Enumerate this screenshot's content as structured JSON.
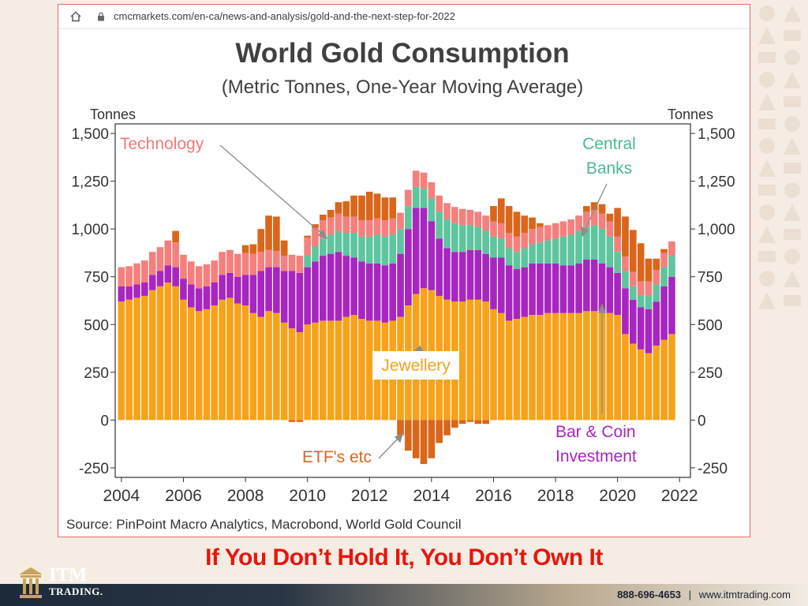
{
  "browser": {
    "url": "cmcmarkets.com/en-ca/news-and-analysis/gold-and-the-next-step-for-2022"
  },
  "chart_data": {
    "type": "bar",
    "stacked": true,
    "title": "World Gold Consumption",
    "subtitle": "(Metric Tonnes, One-Year Moving Average)",
    "ylabel_left": "Tonnes",
    "ylabel_right": "Tonnes",
    "ylim": [
      -300,
      1550
    ],
    "yticks": [
      -250,
      0,
      250,
      500,
      750,
      1000,
      1250,
      1500
    ],
    "ytick_labels": [
      "-250",
      "0",
      "250",
      "500",
      "750",
      "1,000",
      "1,250",
      "1,500"
    ],
    "xlim": [
      2003.8,
      2022.35
    ],
    "xticks": [
      2004,
      2006,
      2008,
      2010,
      2012,
      2014,
      2016,
      2018,
      2020,
      2022
    ],
    "grid": false,
    "source": "Source: PinPoint Macro Analytics, Macrobond, World Gold Council",
    "annotations": {
      "technology": "Technology",
      "central_1": "Central",
      "central_2": "Banks",
      "jewellery": "Jewellery",
      "etf": "ETF's etc",
      "barcoin_1": "Bar & Coin",
      "barcoin_2": "Investment"
    },
    "x": [
      2004.0,
      2004.25,
      2004.5,
      2004.75,
      2005.0,
      2005.25,
      2005.5,
      2005.75,
      2006.0,
      2006.25,
      2006.5,
      2006.75,
      2007.0,
      2007.25,
      2007.5,
      2007.75,
      2008.0,
      2008.25,
      2008.5,
      2008.75,
      2009.0,
      2009.25,
      2009.5,
      2009.75,
      2010.0,
      2010.25,
      2010.5,
      2010.75,
      2011.0,
      2011.25,
      2011.5,
      2011.75,
      2012.0,
      2012.25,
      2012.5,
      2012.75,
      2013.0,
      2013.25,
      2013.5,
      2013.75,
      2014.0,
      2014.25,
      2014.5,
      2014.75,
      2015.0,
      2015.25,
      2015.5,
      2015.75,
      2016.0,
      2016.25,
      2016.5,
      2016.75,
      2017.0,
      2017.25,
      2017.5,
      2017.75,
      2018.0,
      2018.25,
      2018.5,
      2018.75,
      2019.0,
      2019.25,
      2019.5,
      2019.75,
      2020.0,
      2020.25,
      2020.5,
      2020.75,
      2021.0,
      2021.25,
      2021.5,
      2021.75
    ],
    "series": [
      {
        "name": "Jewellery",
        "color": "#f7a21b",
        "values": [
          620,
          630,
          640,
          650,
          680,
          700,
          720,
          700,
          630,
          590,
          570,
          580,
          600,
          630,
          640,
          610,
          600,
          560,
          540,
          570,
          560,
          510,
          480,
          460,
          500,
          510,
          520,
          520,
          520,
          540,
          550,
          530,
          520,
          520,
          510,
          520,
          540,
          600,
          660,
          690,
          680,
          650,
          630,
          620,
          620,
          630,
          630,
          620,
          580,
          560,
          520,
          530,
          540,
          550,
          550,
          560,
          560,
          560,
          560,
          560,
          570,
          570,
          560,
          560,
          550,
          450,
          400,
          370,
          350,
          390,
          420,
          450
        ]
      },
      {
        "name": "Bar & Coin Investment",
        "color": "#a726bf",
        "values": [
          80,
          70,
          70,
          70,
          80,
          80,
          90,
          100,
          110,
          120,
          120,
          120,
          120,
          130,
          130,
          140,
          160,
          200,
          240,
          230,
          240,
          270,
          300,
          310,
          300,
          320,
          340,
          350,
          360,
          320,
          300,
          300,
          300,
          300,
          300,
          300,
          330,
          400,
          450,
          420,
          360,
          300,
          270,
          260,
          260,
          260,
          260,
          250,
          270,
          290,
          290,
          260,
          260,
          270,
          270,
          260,
          260,
          250,
          250,
          260,
          270,
          270,
          260,
          240,
          220,
          240,
          230,
          220,
          230,
          230,
          280,
          300
        ]
      },
      {
        "name": "Central Banks",
        "color": "#5ec59e",
        "values": [
          0,
          0,
          0,
          0,
          0,
          0,
          0,
          0,
          0,
          0,
          0,
          0,
          0,
          0,
          0,
          0,
          0,
          0,
          0,
          0,
          0,
          0,
          0,
          0,
          60,
          80,
          90,
          100,
          110,
          120,
          130,
          130,
          140,
          150,
          150,
          150,
          130,
          120,
          110,
          100,
          120,
          140,
          150,
          150,
          140,
          130,
          120,
          120,
          110,
          100,
          90,
          90,
          100,
          100,
          110,
          120,
          130,
          150,
          160,
          170,
          170,
          180,
          180,
          160,
          110,
          90,
          70,
          60,
          70,
          90,
          100,
          110
        ]
      },
      {
        "name": "Technology",
        "color": "#f4807e",
        "values": [
          100,
          105,
          110,
          115,
          120,
          125,
          130,
          130,
          125,
          120,
          115,
          115,
          115,
          120,
          120,
          120,
          115,
          110,
          100,
          90,
          85,
          80,
          85,
          90,
          95,
          95,
          95,
          90,
          90,
          85,
          85,
          85,
          85,
          85,
          85,
          85,
          85,
          85,
          85,
          85,
          85,
          85,
          85,
          85,
          85,
          80,
          80,
          80,
          80,
          80,
          80,
          80,
          80,
          80,
          80,
          80,
          80,
          80,
          80,
          80,
          80,
          80,
          80,
          80,
          80,
          75,
          75,
          75,
          75,
          75,
          75,
          75
        ]
      },
      {
        "name": "ETF's etc",
        "color": "#d9661b",
        "values": [
          0,
          0,
          0,
          0,
          0,
          0,
          0,
          60,
          0,
          0,
          0,
          0,
          0,
          0,
          0,
          0,
          40,
          50,
          120,
          180,
          180,
          80,
          -10,
          -10,
          10,
          20,
          30,
          40,
          60,
          80,
          110,
          130,
          150,
          130,
          120,
          110,
          -80,
          -160,
          -200,
          -230,
          -200,
          -120,
          -80,
          -40,
          -20,
          -10,
          -20,
          -20,
          80,
          130,
          140,
          130,
          90,
          60,
          20,
          0,
          0,
          0,
          0,
          0,
          30,
          40,
          50,
          40,
          150,
          210,
          220,
          200,
          120,
          60,
          20,
          0
        ]
      }
    ]
  },
  "tagline": "If You Don’t Hold It, You Don’t Own It",
  "footer": {
    "phone": "888-696-4653",
    "separator": "|",
    "website": "www.itmtrading.com"
  },
  "logo": {
    "line1": "ITM",
    "line2": "TRADING."
  }
}
